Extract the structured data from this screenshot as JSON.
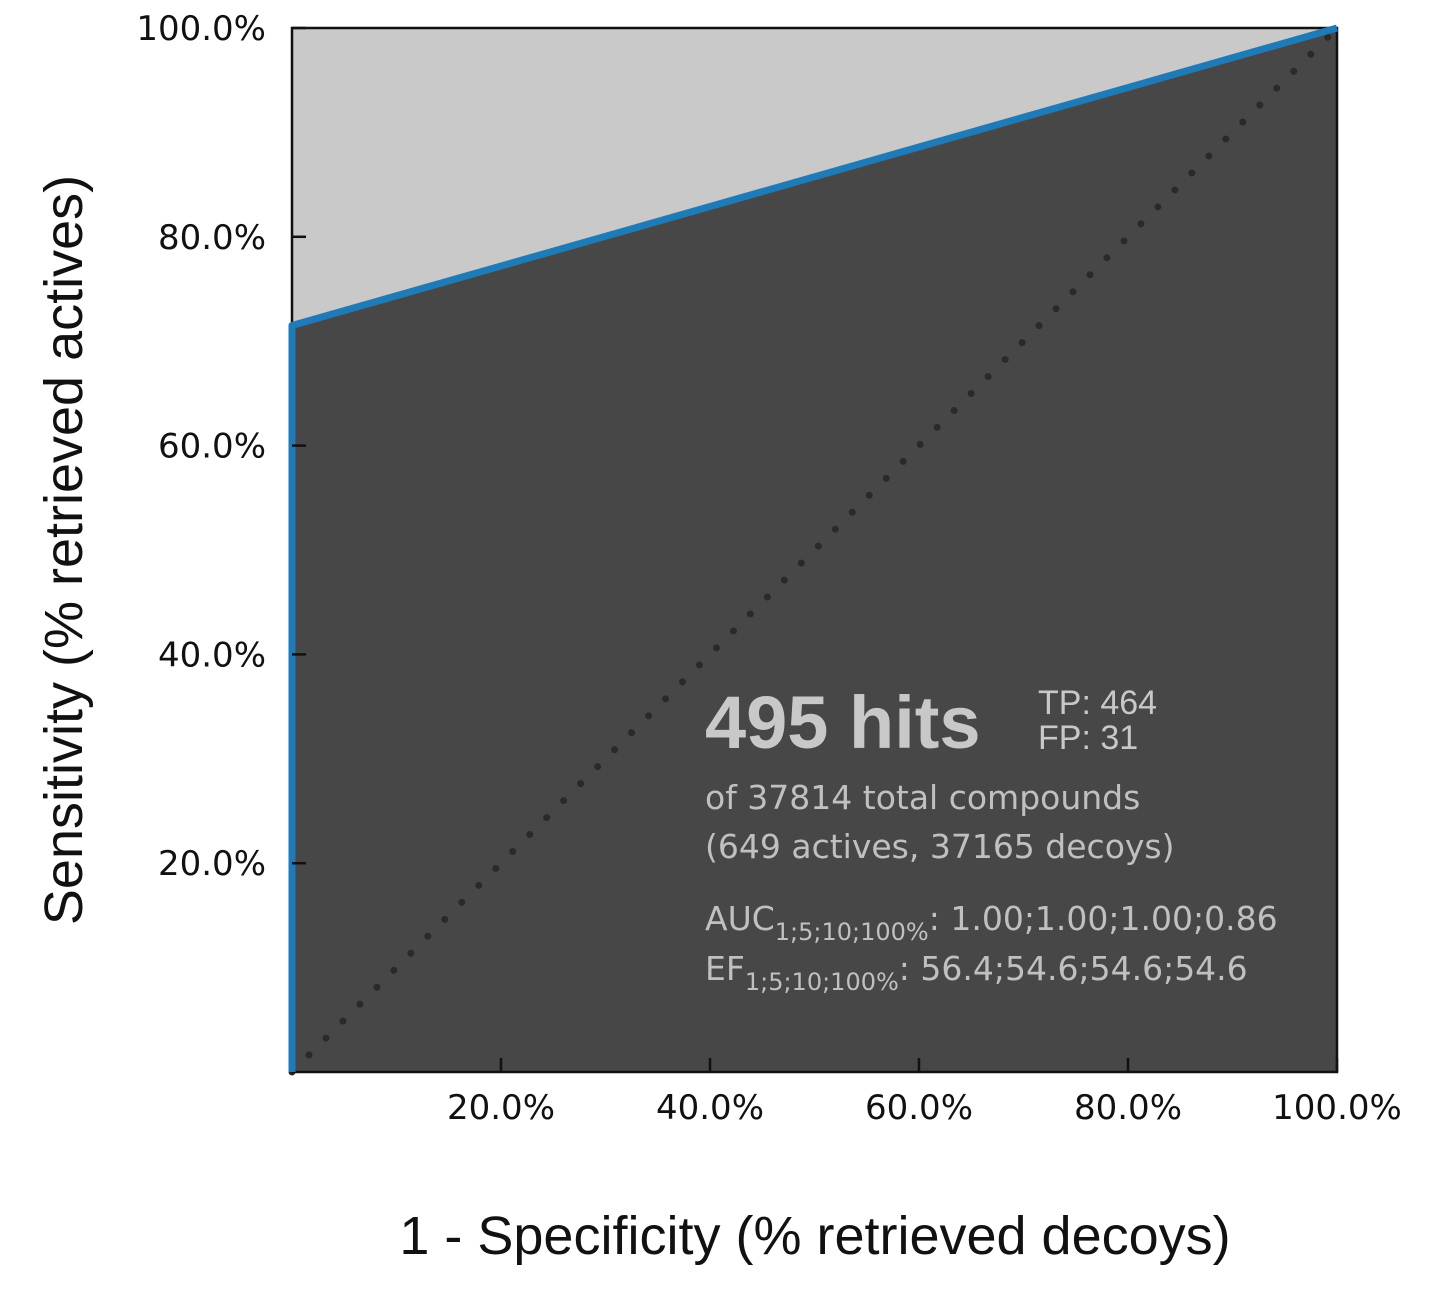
{
  "chart_data": {
    "type": "area",
    "xlabel": "1 - Specificity (% retrieved decoys)",
    "ylabel": "Sensitivity (% retrieved actives)",
    "xlim": [
      0,
      100
    ],
    "ylim": [
      0,
      100
    ],
    "x_ticks": [
      {
        "value": 20,
        "label": "20.0%"
      },
      {
        "value": 40,
        "label": "40.0%"
      },
      {
        "value": 60,
        "label": "60.0%"
      },
      {
        "value": 80,
        "label": "80.0%"
      },
      {
        "value": 100,
        "label": "100.0%"
      }
    ],
    "y_ticks": [
      {
        "value": 20,
        "label": "20.0%"
      },
      {
        "value": 40,
        "label": "40.0%"
      },
      {
        "value": 60,
        "label": "60.0%"
      },
      {
        "value": 80,
        "label": "80.0%"
      },
      {
        "value": 100,
        "label": "100.0%"
      }
    ],
    "series": [
      {
        "points": [
          {
            "x": 0,
            "y": 0
          },
          {
            "x": 0,
            "y": 71.5
          },
          {
            "x": 100,
            "y": 100
          }
        ],
        "color": "#1f7ab8"
      }
    ],
    "reference_line": {
      "points": [
        {
          "x": 0,
          "y": 0
        },
        {
          "x": 100,
          "y": 100
        }
      ],
      "style": "dotted"
    },
    "colors": {
      "under_curve": "#474747",
      "above_curve": "#c9c9c9",
      "curve": "#1f7ab8",
      "reference": "#2a2a2a"
    },
    "annotation": {
      "hits_number": "495 hits",
      "tp": "TP: 464",
      "fp": "FP: 31",
      "total_line": "of 37814 total compounds",
      "composition_line": "(649 actives, 37165 decoys)",
      "auc_label": "AUC",
      "auc_sub": "1;5;10;100%",
      "auc_values": ": 1.00;1.00;1.00;0.86",
      "ef_label": "EF",
      "ef_sub": "1;5;10;100%",
      "ef_values": ": 56.4;54.6;54.6;54.6"
    },
    "grid": false,
    "legend": "none"
  }
}
